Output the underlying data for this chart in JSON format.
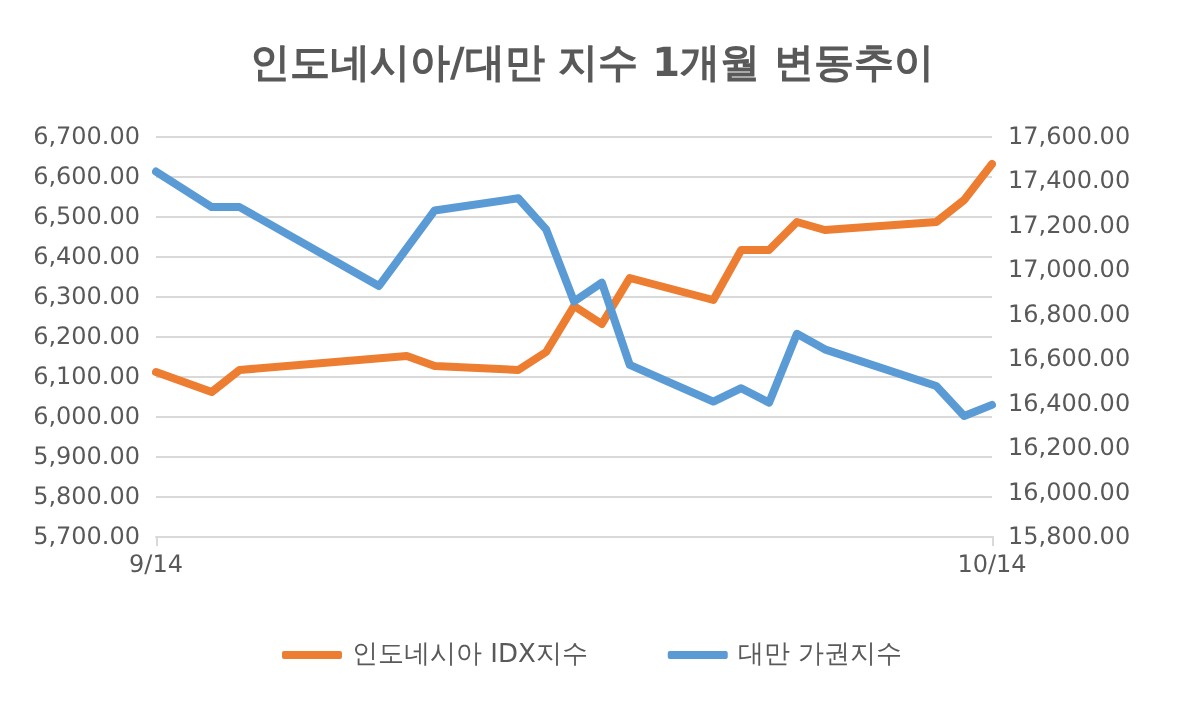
{
  "chart_data": {
    "type": "line",
    "title": "인도네시아/대만 지수 1개월 변동추이",
    "xlim": [
      "--09-14",
      "--10-14"
    ],
    "xticks": [
      {
        "value": "--09-14",
        "label": "9/14"
      },
      {
        "value": "--10-14",
        "label": "10/14"
      }
    ],
    "ylim": [
      5700,
      6700
    ],
    "yticks": [
      {
        "value": 5700,
        "label": "5,700.00"
      },
      {
        "value": 5800,
        "label": "5,800.00"
      },
      {
        "value": 5900,
        "label": "5,900.00"
      },
      {
        "value": 6000,
        "label": "6,000.00"
      },
      {
        "value": 6100,
        "label": "6,100.00"
      },
      {
        "value": 6200,
        "label": "6,200.00"
      },
      {
        "value": 6300,
        "label": "6,300.00"
      },
      {
        "value": 6400,
        "label": "6,400.00"
      },
      {
        "value": 6500,
        "label": "6,500.00"
      },
      {
        "value": 6600,
        "label": "6,600.00"
      },
      {
        "value": 6700,
        "label": "6,700.00"
      }
    ],
    "y2lim": [
      15800,
      17600
    ],
    "y2ticks": [
      {
        "value": 15800,
        "label": "15,800.00"
      },
      {
        "value": 16000,
        "label": "16,000.00"
      },
      {
        "value": 16200,
        "label": "16,200.00"
      },
      {
        "value": 16400,
        "label": "16,400.00"
      },
      {
        "value": 16600,
        "label": "16,600.00"
      },
      {
        "value": 16800,
        "label": "16,800.00"
      },
      {
        "value": 17000,
        "label": "17,000.00"
      },
      {
        "value": 17200,
        "label": "17,200.00"
      },
      {
        "value": 17400,
        "label": "17,400.00"
      },
      {
        "value": 17600,
        "label": "17,600.00"
      }
    ],
    "grid": "y",
    "legend": "bottom",
    "marker": "none",
    "line_style": "solid",
    "series": [
      {
        "name": "인도네시아 IDX지수",
        "color": "#ed7d31",
        "x": [
          "--09-14",
          "--09-16",
          "--09-17",
          "--09-23",
          "--09-24",
          "--09-27",
          "--09-28",
          "--09-29",
          "--09-30",
          "--10-01",
          "--10-04",
          "--10-05",
          "--10-06",
          "--10-07",
          "--10-08",
          "--10-12",
          "--10-13",
          "--10-14"
        ],
        "values": [
          6110,
          6060,
          6115,
          6150,
          6125,
          6115,
          6160,
          6275,
          6230,
          6345,
          6290,
          6415,
          6415,
          6485,
          6465,
          6485,
          6540,
          6630
        ]
      },
      {
        "name": "대만 가권지수",
        "color": "#5b9bd5",
        "axis": "y2",
        "x": [
          "--09-14",
          "--09-16",
          "--09-17",
          "--09-22",
          "--09-24",
          "--09-27",
          "--09-28",
          "--09-29",
          "--09-30",
          "--10-01",
          "--10-04",
          "--10-05",
          "--10-06",
          "--10-07",
          "--10-08",
          "--10-12",
          "--10-13",
          "--10-14"
        ],
        "values": [
          17440,
          17280,
          17280,
          16925,
          17265,
          17320,
          17180,
          16855,
          16940,
          16570,
          16405,
          16465,
          16400,
          16710,
          16640,
          16475,
          16340,
          16390
        ]
      }
    ]
  }
}
